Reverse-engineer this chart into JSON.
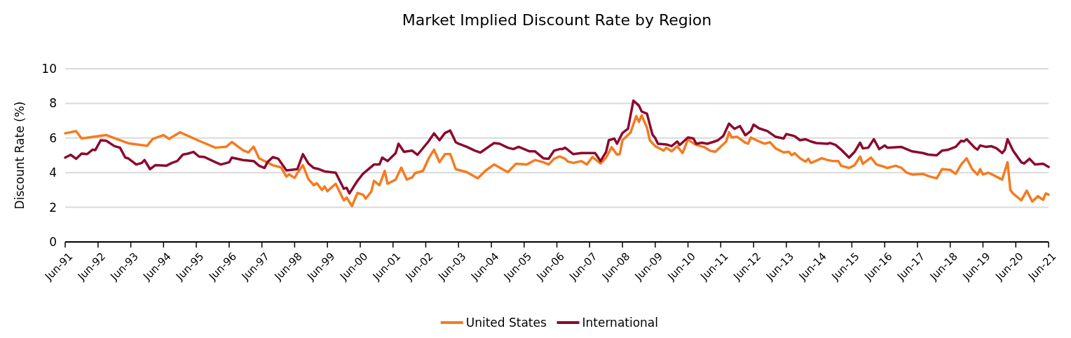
{
  "chart_data": {
    "type": "line",
    "title": "Market Implied Discount Rate by Region",
    "ylabel": "Discount Rate (%)",
    "xlim": [
      "1991-06",
      "2021-06"
    ],
    "xticks": [
      {
        "value": "1991-06",
        "label": "Jun-91"
      },
      {
        "value": "1992-06",
        "label": "Jun-92"
      },
      {
        "value": "1993-06",
        "label": "Jun-93"
      },
      {
        "value": "1994-06",
        "label": "Jun-94"
      },
      {
        "value": "1995-06",
        "label": "Jun-95"
      },
      {
        "value": "1996-06",
        "label": "Jun-96"
      },
      {
        "value": "1997-06",
        "label": "Jun-97"
      },
      {
        "value": "1998-06",
        "label": "Jun-98"
      },
      {
        "value": "1999-06",
        "label": "Jun-99"
      },
      {
        "value": "2000-06",
        "label": "Jun-00"
      },
      {
        "value": "2001-06",
        "label": "Jun-01"
      },
      {
        "value": "2002-06",
        "label": "Jun-02"
      },
      {
        "value": "2003-06",
        "label": "Jun-03"
      },
      {
        "value": "2004-06",
        "label": "Jun-04"
      },
      {
        "value": "2005-06",
        "label": "Jun-05"
      },
      {
        "value": "2006-06",
        "label": "Jun-06"
      },
      {
        "value": "2007-06",
        "label": "Jun-07"
      },
      {
        "value": "2008-06",
        "label": "Jun-08"
      },
      {
        "value": "2009-06",
        "label": "Jun-09"
      },
      {
        "value": "2010-06",
        "label": "Jun-10"
      },
      {
        "value": "2011-06",
        "label": "Jun-11"
      },
      {
        "value": "2012-06",
        "label": "Jun-12"
      },
      {
        "value": "2013-06",
        "label": "Jun-13"
      },
      {
        "value": "2014-06",
        "label": "Jun-14"
      },
      {
        "value": "2015-06",
        "label": "Jun-15"
      },
      {
        "value": "2016-06",
        "label": "Jun-16"
      },
      {
        "value": "2017-06",
        "label": "Jun-17"
      },
      {
        "value": "2018-06",
        "label": "Jun-18"
      },
      {
        "value": "2019-06",
        "label": "Jun-19"
      },
      {
        "value": "2020-06",
        "label": "Jun-20"
      },
      {
        "value": "2021-06",
        "label": "Jun-21"
      }
    ],
    "ylim": [
      0,
      10
    ],
    "yticks": [
      0,
      2,
      4,
      6,
      8,
      10
    ],
    "grid": "y",
    "legend": "bottom",
    "line_style": "solid",
    "series": [
      {
        "name": "United States",
        "color": "#f47b20",
        "x": [
          "1991-06",
          "1991-10",
          "1991-12",
          "1992-09",
          "1993-05",
          "1993-12",
          "1994-02",
          "1994-06",
          "1994-08",
          "1994-12",
          "1995-07",
          "1996-01",
          "1996-05",
          "1996-07",
          "1996-11",
          "1997-01",
          "1997-03",
          "1997-05",
          "1997-10",
          "1998-01",
          "1998-03",
          "1998-04",
          "1998-06",
          "1998-07",
          "1998-09",
          "1998-11",
          "1999-01",
          "1999-02",
          "1999-04",
          "1999-05",
          "1999-06",
          "1999-09",
          "1999-12",
          "2000-01",
          "2000-03",
          "2000-05",
          "2000-07",
          "2000-08",
          "2000-10",
          "2000-11",
          "2001-01",
          "2001-03",
          "2001-04",
          "2001-07",
          "2001-09",
          "2001-11",
          "2002-01",
          "2002-02",
          "2002-05",
          "2002-07",
          "2002-09",
          "2002-11",
          "2003-01",
          "2003-03",
          "2003-05",
          "2003-09",
          "2004-01",
          "2004-04",
          "2004-07",
          "2004-12",
          "2005-03",
          "2005-07",
          "2005-10",
          "2006-01",
          "2006-03",
          "2006-05",
          "2006-07",
          "2006-09",
          "2006-10",
          "2006-12",
          "2007-03",
          "2007-05",
          "2007-07",
          "2007-10",
          "2007-12",
          "2008-02",
          "2008-04",
          "2008-05",
          "2008-06",
          "2008-09",
          "2008-11",
          "2008-12",
          "2009-01",
          "2009-03",
          "2009-04",
          "2009-06",
          "2009-09",
          "2009-10",
          "2009-12",
          "2010-02",
          "2010-04",
          "2010-06",
          "2010-07",
          "2010-09",
          "2010-12",
          "2011-02",
          "2011-04",
          "2011-08",
          "2011-09",
          "2011-10",
          "2011-12",
          "2012-03",
          "2012-04",
          "2012-05",
          "2012-08",
          "2012-10",
          "2012-12",
          "2013-02",
          "2013-05",
          "2013-07",
          "2013-08",
          "2013-09",
          "2013-11",
          "2014-01",
          "2014-02",
          "2014-03",
          "2014-05",
          "2014-07",
          "2014-09",
          "2014-11",
          "2015-01",
          "2015-02",
          "2015-05",
          "2015-07",
          "2015-09",
          "2015-10",
          "2016-01",
          "2016-03",
          "2016-06",
          "2016-07",
          "2016-10",
          "2016-12",
          "2017-02",
          "2017-04",
          "2017-08",
          "2017-10",
          "2018-01",
          "2018-03",
          "2018-06",
          "2018-08",
          "2018-10",
          "2018-12",
          "2019-02",
          "2019-04",
          "2019-05",
          "2019-06",
          "2019-08",
          "2019-11",
          "2020-01",
          "2020-03",
          "2020-04",
          "2020-05",
          "2020-08",
          "2020-10",
          "2020-12",
          "2021-02",
          "2021-04",
          "2021-05",
          "2021-06"
        ],
        "values": [
          6.27,
          6.4,
          5.97,
          6.17,
          5.7,
          5.55,
          5.95,
          6.17,
          5.95,
          6.33,
          5.84,
          5.44,
          5.5,
          5.77,
          5.3,
          5.17,
          5.5,
          4.83,
          4.43,
          4.3,
          3.77,
          3.9,
          3.7,
          3.97,
          4.43,
          3.63,
          3.27,
          3.4,
          3.0,
          3.2,
          2.93,
          3.36,
          2.4,
          2.56,
          2.07,
          2.83,
          2.73,
          2.5,
          2.9,
          3.53,
          3.27,
          4.1,
          3.36,
          3.6,
          4.29,
          3.6,
          3.73,
          3.97,
          4.1,
          4.8,
          5.33,
          4.6,
          5.07,
          5.07,
          4.2,
          4.03,
          3.67,
          4.13,
          4.47,
          4.03,
          4.51,
          4.47,
          4.73,
          4.6,
          4.47,
          4.8,
          4.93,
          4.8,
          4.64,
          4.56,
          4.67,
          4.47,
          4.9,
          4.53,
          4.87,
          5.47,
          5.04,
          5.07,
          5.87,
          6.33,
          7.27,
          6.93,
          7.31,
          6.6,
          5.87,
          5.53,
          5.27,
          5.44,
          5.23,
          5.53,
          5.13,
          5.93,
          5.8,
          5.6,
          5.47,
          5.27,
          5.2,
          5.8,
          6.33,
          6.03,
          6.07,
          5.73,
          5.67,
          6.03,
          5.8,
          5.67,
          5.76,
          5.4,
          5.17,
          5.2,
          5.0,
          5.13,
          4.83,
          4.64,
          4.8,
          4.56,
          4.69,
          4.83,
          4.73,
          4.67,
          4.67,
          4.4,
          4.27,
          4.43,
          4.93,
          4.51,
          4.87,
          4.47,
          4.33,
          4.27,
          4.4,
          4.29,
          4.0,
          3.89,
          3.93,
          3.8,
          3.67,
          4.2,
          4.16,
          3.93,
          4.47,
          4.83,
          4.2,
          3.89,
          4.2,
          3.89,
          4.0,
          3.76,
          3.6,
          4.6,
          3.0,
          2.8,
          2.4,
          2.96,
          2.33,
          2.64,
          2.43,
          2.8,
          2.73
        ]
      },
      {
        "name": "International",
        "color": "#8b0a2e",
        "x": [
          "1991-06",
          "1991-08",
          "1991-10",
          "1991-12",
          "1992-02",
          "1992-04",
          "1992-05",
          "1992-07",
          "1992-09",
          "1992-12",
          "1993-02",
          "1993-04",
          "1993-05",
          "1993-08",
          "1993-10",
          "1993-11",
          "1994-01",
          "1994-03",
          "1994-07",
          "1994-09",
          "1994-11",
          "1995-01",
          "1995-03",
          "1995-05",
          "1995-07",
          "1995-09",
          "1996-01",
          "1996-03",
          "1996-06",
          "1996-07",
          "1996-09",
          "1996-11",
          "1997-03",
          "1997-05",
          "1997-07",
          "1997-08",
          "1997-10",
          "1997-12",
          "1998-03",
          "1998-07",
          "1998-09",
          "1998-11",
          "1999-01",
          "1999-03",
          "1999-05",
          "1999-09",
          "1999-12",
          "2000-01",
          "2000-02",
          "2000-05",
          "2000-07",
          "2000-11",
          "2001-01",
          "2001-02",
          "2001-04",
          "2001-07",
          "2001-08",
          "2001-10",
          "2002-01",
          "2002-03",
          "2002-07",
          "2002-09",
          "2002-11",
          "2003-01",
          "2003-03",
          "2003-05",
          "2003-06",
          "2003-09",
          "2003-12",
          "2004-02",
          "2004-05",
          "2004-07",
          "2004-09",
          "2004-12",
          "2005-02",
          "2005-04",
          "2005-08",
          "2005-10",
          "2006-01",
          "2006-03",
          "2006-05",
          "2006-07",
          "2006-08",
          "2006-09",
          "2006-12",
          "2007-03",
          "2007-06",
          "2007-08",
          "2007-10",
          "2007-12",
          "2008-01",
          "2008-03",
          "2008-04",
          "2008-06",
          "2008-08",
          "2008-10",
          "2008-12",
          "2009-01",
          "2009-03",
          "2009-05",
          "2009-06",
          "2009-07",
          "2009-10",
          "2009-12",
          "2010-02",
          "2010-03",
          "2010-06",
          "2010-08",
          "2010-09",
          "2010-11",
          "2011-01",
          "2011-03",
          "2011-05",
          "2011-07",
          "2011-09",
          "2011-11",
          "2012-01",
          "2012-03",
          "2012-05",
          "2012-06",
          "2012-08",
          "2012-11",
          "2013-02",
          "2013-05",
          "2013-06",
          "2013-09",
          "2013-11",
          "2014-01",
          "2014-03",
          "2014-05",
          "2014-09",
          "2014-10",
          "2014-12",
          "2015-02",
          "2015-05",
          "2015-07",
          "2015-09",
          "2015-10",
          "2015-12",
          "2016-02",
          "2016-04",
          "2016-06",
          "2016-07",
          "2016-12",
          "2017-04",
          "2017-08",
          "2017-10",
          "2018-01",
          "2018-03",
          "2018-05",
          "2018-08",
          "2018-10",
          "2018-11",
          "2018-12",
          "2019-03",
          "2019-04",
          "2019-05",
          "2019-07",
          "2019-09",
          "2019-11",
          "2020-01",
          "2020-02",
          "2020-03",
          "2020-05",
          "2020-08",
          "2020-09",
          "2020-11",
          "2021-01",
          "2021-04",
          "2021-06"
        ],
        "values": [
          4.87,
          5.03,
          4.8,
          5.1,
          5.07,
          5.33,
          5.3,
          5.87,
          5.84,
          5.53,
          5.44,
          4.87,
          4.83,
          4.47,
          4.56,
          4.73,
          4.2,
          4.43,
          4.4,
          4.56,
          4.67,
          5.04,
          5.1,
          5.2,
          4.93,
          4.9,
          4.6,
          4.47,
          4.6,
          4.87,
          4.8,
          4.73,
          4.67,
          4.4,
          4.27,
          4.6,
          4.9,
          4.8,
          4.13,
          4.2,
          5.07,
          4.53,
          4.27,
          4.2,
          4.07,
          4.0,
          3.07,
          3.13,
          2.8,
          3.53,
          3.93,
          4.47,
          4.47,
          4.87,
          4.67,
          5.13,
          5.67,
          5.2,
          5.27,
          5.03,
          5.8,
          6.27,
          5.87,
          6.29,
          6.43,
          5.76,
          5.67,
          5.49,
          5.27,
          5.16,
          5.49,
          5.71,
          5.67,
          5.44,
          5.36,
          5.49,
          5.23,
          5.23,
          4.83,
          4.8,
          5.27,
          5.36,
          5.36,
          5.44,
          5.07,
          5.13,
          5.13,
          5.13,
          4.67,
          5.2,
          5.87,
          5.97,
          5.67,
          6.29,
          6.53,
          8.16,
          7.87,
          7.53,
          7.4,
          6.2,
          6.0,
          5.67,
          5.63,
          5.53,
          5.8,
          5.6,
          6.03,
          5.97,
          5.67,
          5.73,
          5.67,
          5.76,
          5.87,
          6.13,
          6.83,
          6.53,
          6.69,
          6.16,
          6.4,
          6.77,
          6.56,
          6.4,
          6.07,
          5.97,
          6.23,
          6.11,
          5.87,
          5.93,
          5.8,
          5.71,
          5.67,
          5.71,
          5.6,
          5.33,
          4.87,
          5.2,
          5.73,
          5.4,
          5.44,
          5.93,
          5.36,
          5.57,
          5.44,
          5.49,
          5.23,
          5.13,
          5.04,
          5.0,
          5.27,
          5.31,
          5.49,
          5.84,
          5.8,
          5.93,
          5.44,
          5.33,
          5.57,
          5.49,
          5.53,
          5.4,
          5.13,
          5.33,
          5.93,
          5.27,
          4.6,
          4.53,
          4.8,
          4.47,
          4.51,
          4.33
        ]
      }
    ]
  }
}
